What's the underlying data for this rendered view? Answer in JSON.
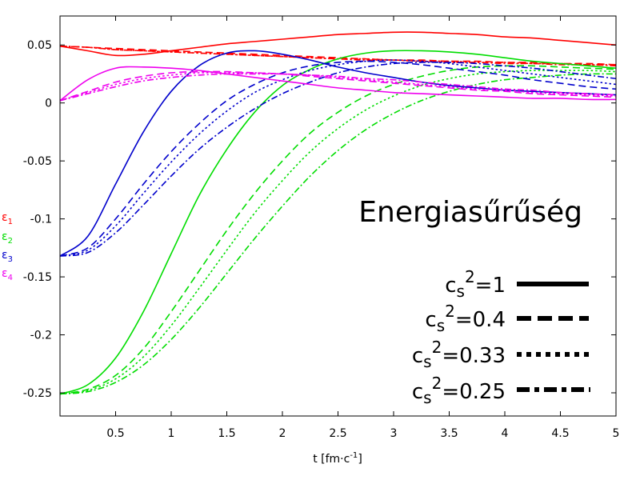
{
  "chart_data": {
    "type": "line",
    "title": "Energiasűrűség",
    "xlabel": "t [fm·c",
    "xlabel_sup": "-1",
    "xlabel_end": "]",
    "xlim": [
      0,
      5
    ],
    "ylim": [
      -0.27,
      0.075
    ],
    "x_ticks": [
      0.5,
      1,
      1.5,
      2,
      2.5,
      3,
      3.5,
      4,
      4.5,
      5
    ],
    "x_tick_labels": [
      "0.5",
      "1",
      "1.5",
      "2",
      "2.5",
      "3",
      "3.5",
      "4",
      "4.5",
      "5"
    ],
    "y_ticks": [
      0.05,
      0,
      -0.05,
      -0.1,
      -0.15,
      -0.2,
      -0.25
    ],
    "y_tick_labels": [
      "0.05",
      "0",
      "-0.05",
      "-0.1",
      "-0.15",
      "-0.2",
      "-0.25"
    ],
    "y_labels": [
      {
        "base": "ε",
        "sub": "1",
        "color": "#ff0000"
      },
      {
        "base": "ε",
        "sub": "2",
        "color": "#00dd00"
      },
      {
        "base": "ε",
        "sub": "3",
        "color": "#0000cc"
      },
      {
        "base": "ε",
        "sub": "4",
        "color": "#ee00ee"
      }
    ],
    "legend": [
      {
        "pre": "c",
        "sub": "s",
        "sup": "2",
        "post": "=1",
        "style": "solid"
      },
      {
        "pre": "c",
        "sub": "s",
        "sup": "2",
        "post": "=0.4",
        "style": "dashed"
      },
      {
        "pre": "c",
        "sub": "s",
        "sup": "2",
        "post": "=0.33",
        "style": "dotted"
      },
      {
        "pre": "c",
        "sub": "s",
        "sup": "2",
        "post": "=0.25",
        "style": "dashdot"
      }
    ],
    "legend_placement": "bottom-right",
    "grid": false,
    "x": [
      0,
      0.25,
      0.5,
      0.75,
      1,
      1.25,
      1.5,
      1.75,
      2,
      2.25,
      2.5,
      2.75,
      3,
      3.25,
      3.5,
      3.75,
      4,
      4.25,
      4.5,
      4.75,
      5
    ],
    "series": [
      {
        "color": "#ff0000",
        "style": "solid",
        "values": [
          0.049,
          0.045,
          0.041,
          0.042,
          0.045,
          0.048,
          0.051,
          0.053,
          0.055,
          0.057,
          0.059,
          0.06,
          0.061,
          0.061,
          0.06,
          0.059,
          0.057,
          0.056,
          0.054,
          0.052,
          0.05
        ]
      },
      {
        "color": "#ff0000",
        "style": "dashed",
        "values": [
          0.049,
          0.048,
          0.047,
          0.046,
          0.045,
          0.044,
          0.043,
          0.042,
          0.041,
          0.04,
          0.039,
          0.038,
          0.037,
          0.037,
          0.036,
          0.036,
          0.035,
          0.035,
          0.034,
          0.034,
          0.033
        ]
      },
      {
        "color": "#ff0000",
        "style": "dotted",
        "values": [
          0.049,
          0.048,
          0.046,
          0.045,
          0.044,
          0.043,
          0.042,
          0.041,
          0.04,
          0.039,
          0.038,
          0.038,
          0.037,
          0.036,
          0.036,
          0.035,
          0.035,
          0.034,
          0.034,
          0.033,
          0.033
        ]
      },
      {
        "color": "#ff0000",
        "style": "dashdot",
        "values": [
          0.049,
          0.048,
          0.046,
          0.045,
          0.044,
          0.043,
          0.042,
          0.041,
          0.04,
          0.039,
          0.038,
          0.037,
          0.037,
          0.036,
          0.035,
          0.035,
          0.034,
          0.034,
          0.033,
          0.033,
          0.032
        ]
      },
      {
        "color": "#00dd00",
        "style": "solid",
        "values": [
          -0.251,
          -0.243,
          -0.22,
          -0.18,
          -0.13,
          -0.08,
          -0.04,
          -0.008,
          0.015,
          0.029,
          0.038,
          0.043,
          0.045,
          0.045,
          0.044,
          0.042,
          0.039,
          0.036,
          0.034,
          0.032,
          0.03
        ]
      },
      {
        "color": "#00dd00",
        "style": "dashed",
        "values": [
          -0.251,
          -0.247,
          -0.235,
          -0.212,
          -0.18,
          -0.145,
          -0.11,
          -0.078,
          -0.05,
          -0.026,
          -0.008,
          0.006,
          0.016,
          0.023,
          0.028,
          0.031,
          0.032,
          0.032,
          0.031,
          0.03,
          0.029
        ]
      },
      {
        "color": "#00dd00",
        "style": "dotted",
        "values": [
          -0.251,
          -0.248,
          -0.238,
          -0.219,
          -0.192,
          -0.16,
          -0.127,
          -0.095,
          -0.067,
          -0.042,
          -0.022,
          -0.006,
          0.006,
          0.015,
          0.021,
          0.025,
          0.027,
          0.028,
          0.028,
          0.028,
          0.027
        ]
      },
      {
        "color": "#00dd00",
        "style": "dashdot",
        "values": [
          -0.251,
          -0.249,
          -0.241,
          -0.226,
          -0.204,
          -0.177,
          -0.147,
          -0.117,
          -0.089,
          -0.063,
          -0.041,
          -0.023,
          -0.009,
          0.002,
          0.01,
          0.016,
          0.02,
          0.022,
          0.024,
          0.025,
          0.025
        ]
      },
      {
        "color": "#0000cc",
        "style": "solid",
        "values": [
          -0.132,
          -0.115,
          -0.07,
          -0.025,
          0.01,
          0.032,
          0.043,
          0.045,
          0.042,
          0.037,
          0.031,
          0.026,
          0.022,
          0.018,
          0.015,
          0.013,
          0.011,
          0.01,
          0.009,
          0.008,
          0.007
        ]
      },
      {
        "color": "#0000cc",
        "style": "dashed",
        "values": [
          -0.132,
          -0.125,
          -0.1,
          -0.07,
          -0.042,
          -0.018,
          0.002,
          0.016,
          0.026,
          0.032,
          0.035,
          0.036,
          0.035,
          0.033,
          0.03,
          0.027,
          0.024,
          0.02,
          0.017,
          0.014,
          0.012
        ]
      },
      {
        "color": "#0000cc",
        "style": "dotted",
        "values": [
          -0.132,
          -0.127,
          -0.106,
          -0.078,
          -0.051,
          -0.027,
          -0.007,
          0.009,
          0.02,
          0.028,
          0.033,
          0.036,
          0.037,
          0.036,
          0.034,
          0.031,
          0.028,
          0.025,
          0.022,
          0.019,
          0.016
        ]
      },
      {
        "color": "#0000cc",
        "style": "dashdot",
        "values": [
          -0.132,
          -0.129,
          -0.112,
          -0.088,
          -0.063,
          -0.04,
          -0.021,
          -0.005,
          0.008,
          0.018,
          0.026,
          0.031,
          0.034,
          0.035,
          0.035,
          0.034,
          0.032,
          0.03,
          0.027,
          0.024,
          0.021
        ]
      },
      {
        "color": "#ee00ee",
        "style": "solid",
        "values": [
          0.002,
          0.02,
          0.03,
          0.031,
          0.03,
          0.028,
          0.025,
          0.022,
          0.019,
          0.016,
          0.013,
          0.011,
          0.009,
          0.008,
          0.007,
          0.006,
          0.005,
          0.004,
          0.004,
          0.003,
          0.003
        ]
      },
      {
        "color": "#ee00ee",
        "style": "dashed",
        "values": [
          0.002,
          0.01,
          0.018,
          0.023,
          0.026,
          0.027,
          0.027,
          0.026,
          0.025,
          0.023,
          0.021,
          0.019,
          0.017,
          0.015,
          0.013,
          0.011,
          0.01,
          0.008,
          0.007,
          0.006,
          0.005
        ]
      },
      {
        "color": "#ee00ee",
        "style": "dotted",
        "values": [
          0.002,
          0.009,
          0.016,
          0.021,
          0.024,
          0.026,
          0.026,
          0.026,
          0.025,
          0.024,
          0.022,
          0.02,
          0.018,
          0.016,
          0.014,
          0.012,
          0.011,
          0.009,
          0.008,
          0.007,
          0.006
        ]
      },
      {
        "color": "#ee00ee",
        "style": "dashdot",
        "values": [
          0.002,
          0.008,
          0.014,
          0.019,
          0.022,
          0.024,
          0.025,
          0.025,
          0.025,
          0.024,
          0.023,
          0.021,
          0.02,
          0.018,
          0.016,
          0.014,
          0.012,
          0.011,
          0.009,
          0.008,
          0.007
        ]
      }
    ]
  }
}
